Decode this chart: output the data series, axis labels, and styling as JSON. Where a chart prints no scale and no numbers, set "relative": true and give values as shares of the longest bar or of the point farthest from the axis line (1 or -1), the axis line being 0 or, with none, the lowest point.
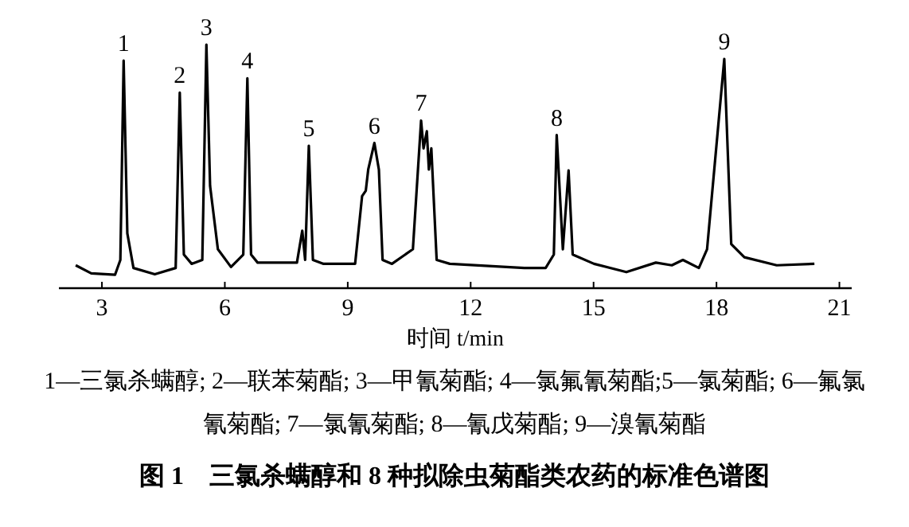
{
  "chart_data": {
    "type": "line",
    "relative": true,
    "title": "图 1　三氯杀螨醇和 8 种拟除虫菊酯类农药的标准色谱图",
    "xlabel": "时间 t/min",
    "xlim": [
      1.95,
      21.3
    ],
    "xticks": [
      3,
      6,
      9,
      12,
      15,
      18,
      21
    ],
    "grid": false,
    "marker": "none",
    "line_style": "solid",
    "series": [
      {
        "color": "#000000",
        "x": [
          2.36,
          2.74,
          3.32,
          3.45,
          3.53,
          3.62,
          3.77,
          4.29,
          4.8,
          4.9,
          5.0,
          5.19,
          5.45,
          5.55,
          5.64,
          5.83,
          6.15,
          6.45,
          6.55,
          6.64,
          6.8,
          7.76,
          7.89,
          7.96,
          8.05,
          8.15,
          8.41,
          9.18,
          9.35,
          9.44,
          9.5,
          9.65,
          9.76,
          9.85,
          10.08,
          10.59,
          10.79,
          10.85,
          10.93,
          10.98,
          11.04,
          11.17,
          11.49,
          13.31,
          13.83,
          14.03,
          14.1,
          14.25,
          14.39,
          14.49,
          15.01,
          15.8,
          16.52,
          16.91,
          17.18,
          17.57,
          17.77,
          18.19,
          18.36,
          18.68,
          19.47,
          20.39
        ],
        "values": [
          0.094,
          0.061,
          0.055,
          0.116,
          0.934,
          0.225,
          0.083,
          0.057,
          0.083,
          0.803,
          0.138,
          0.1,
          0.116,
          1.0,
          0.42,
          0.16,
          0.087,
          0.138,
          0.862,
          0.138,
          0.105,
          0.105,
          0.236,
          0.116,
          0.585,
          0.116,
          0.1,
          0.1,
          0.378,
          0.4,
          0.487,
          0.596,
          0.487,
          0.116,
          0.1,
          0.16,
          0.688,
          0.574,
          0.644,
          0.487,
          0.574,
          0.116,
          0.1,
          0.083,
          0.083,
          0.138,
          0.629,
          0.16,
          0.483,
          0.138,
          0.1,
          0.066,
          0.105,
          0.094,
          0.116,
          0.083,
          0.16,
          0.941,
          0.181,
          0.127,
          0.094,
          0.1
        ]
      }
    ],
    "annotations": [
      {
        "text": "1",
        "x": 3.53,
        "y": 0.934
      },
      {
        "text": "2",
        "x": 4.9,
        "y": 0.803
      },
      {
        "text": "3",
        "x": 5.55,
        "y": 1.0
      },
      {
        "text": "4",
        "x": 6.55,
        "y": 0.862
      },
      {
        "text": "5",
        "x": 8.05,
        "y": 0.585
      },
      {
        "text": "6",
        "x": 9.65,
        "y": 0.596
      },
      {
        "text": "7",
        "x": 10.79,
        "y": 0.688
      },
      {
        "text": "8",
        "x": 14.1,
        "y": 0.629
      },
      {
        "text": "9",
        "x": 18.19,
        "y": 0.941
      },
      "1—三氯杀螨醇; 2—联苯菊酯; 3—甲氰菊酯; 4—氯氟氰菊酯;5—氯菊酯; 6—氟氯氰菊酯; 7—氯氰菊酯; 8—氰戊菊酯; 9—溴氰菊酯"
    ]
  }
}
